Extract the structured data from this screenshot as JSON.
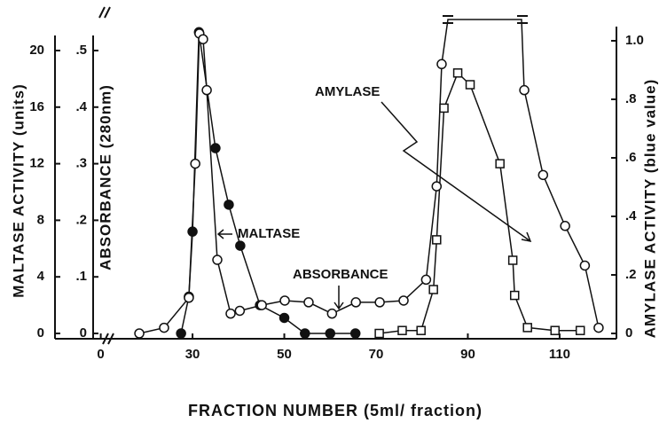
{
  "chart_data": {
    "type": "scatter-line",
    "x_label": "FRACTION NUMBER  (5ml/ fraction)",
    "xlim": [
      0,
      122
    ],
    "x_break": [
      0,
      10
    ],
    "xticks": [
      0,
      30,
      50,
      70,
      90,
      110
    ],
    "y_label": "MALTASE ACTIVITY (units)",
    "ylim": [
      0,
      20
    ],
    "yticks": [
      0,
      4,
      8,
      12,
      16,
      20
    ],
    "y_inner_label": "ABSORBANCE (280nm)",
    "y_inner_lim": [
      0,
      0.5
    ],
    "y_inner_ticks": [
      0,
      {
        "value": 0.1,
        "label": ".1"
      },
      {
        "value": 0.2,
        "label": ".2"
      },
      {
        "value": 0.3,
        "label": ".3"
      },
      {
        "value": 0.4,
        "label": ".4"
      },
      {
        "value": 0.5,
        "label": ".5"
      }
    ],
    "y2_label": "AMYLASE ACTIVITY (blue value)",
    "y2lim": [
      0,
      1
    ],
    "y2ticks": [
      0,
      {
        "value": 0.2,
        "label": ".2"
      },
      {
        "value": 0.4,
        "label": ".4"
      },
      {
        "value": 0.6,
        "label": ".6"
      },
      {
        "value": 0.8,
        "label": ".8"
      },
      {
        "value": 1,
        "label": "1.0"
      }
    ],
    "annotations": [
      "MALTASE",
      "ABSORBANCE",
      "AMYLASE"
    ],
    "series": [
      {
        "name": "MALTASE",
        "axis": "y",
        "marker": "filled-circle",
        "color": "#111111",
        "x": [
          27.5,
          29.2,
          30,
          31.4,
          35,
          37.9,
          40.4,
          44.7,
          50,
          54.5,
          60,
          65.5
        ],
        "values": [
          0,
          2.6,
          7.2,
          21.3,
          13.1,
          9.1,
          6.2,
          2,
          1.1,
          0,
          0,
          0
        ]
      },
      {
        "name": "ABSORBANCE",
        "axis": "y_inner",
        "marker": "open-circle",
        "color": "#111111",
        "x": [
          18.4,
          23.8,
          29.2,
          30.6,
          31.5,
          32.3,
          33.1,
          35.4,
          38.3,
          40.3,
          45.1,
          50.1,
          55.3,
          60.4,
          65.6,
          70.8,
          76,
          80.9,
          83.2,
          84.3,
          null,
          102.3,
          106.4,
          111.2,
          115.5,
          118.5
        ],
        "values": [
          0,
          0.01,
          0.063,
          0.3,
          0.53,
          0.52,
          0.43,
          0.13,
          0.035,
          0.04,
          0.05,
          0.058,
          0.055,
          0.035,
          0.055,
          0.055,
          0.058,
          0.095,
          0.26,
          0.476,
          null,
          0.43,
          0.28,
          0.19,
          0.12,
          0.01
        ]
      },
      {
        "name": "AMYLASE",
        "axis": "y2",
        "marker": "open-square",
        "color": "#111111",
        "x": [
          70.7,
          75.7,
          79.8,
          82.5,
          83.2,
          84.8,
          87.8,
          90.5,
          97,
          99.8,
          100.2,
          103,
          109,
          114.5
        ],
        "values": [
          0,
          0.01,
          0.01,
          0.15,
          0.32,
          0.77,
          0.89,
          0.85,
          0.58,
          0.25,
          0.13,
          0.02,
          0.01,
          0.01
        ]
      }
    ]
  }
}
